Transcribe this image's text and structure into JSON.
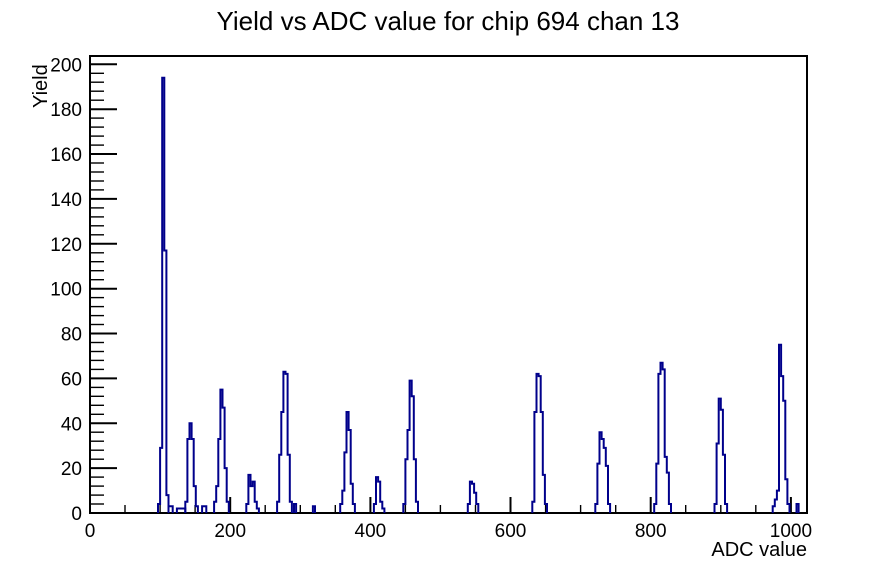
{
  "window": {
    "background_color": "#ffffff"
  },
  "chart_data": {
    "type": "bar",
    "style": "step-histogram",
    "title": "Yield vs ADC value for chip 694 chan 13",
    "xlabel": "ADC value",
    "ylabel": "Yield",
    "xlim": [
      0,
      1023
    ],
    "ylim": [
      0,
      203.7
    ],
    "grid": "off",
    "legend": "none",
    "axis_color": "#000000",
    "line_color": "#00008b",
    "x_major_step": 200,
    "x_minor_step": 50,
    "x_major_ticks": [
      0,
      200,
      400,
      600,
      800,
      1000
    ],
    "y_major_step": 20,
    "y_minor_step": 4,
    "y_major_ticks": [
      0,
      20,
      40,
      60,
      80,
      100,
      120,
      140,
      160,
      180,
      200
    ],
    "bin_width_adc": 3,
    "clusters": [
      {
        "start": 97,
        "values": [
          4,
          29,
          194,
          117,
          8
        ]
      },
      {
        "start": 112,
        "values": [
          3,
          3
        ]
      },
      {
        "start": 124,
        "values": [
          2,
          2,
          2,
          2
        ]
      },
      {
        "start": 136,
        "values": [
          5,
          33,
          40,
          33,
          12,
          3
        ]
      },
      {
        "start": 160,
        "values": [
          3,
          3
        ]
      },
      {
        "start": 177,
        "values": [
          5,
          12,
          33,
          55,
          47,
          20,
          5
        ]
      },
      {
        "start": 223,
        "values": [
          4,
          17,
          12,
          14,
          5,
          2
        ]
      },
      {
        "start": 267,
        "values": [
          5,
          26,
          45,
          63,
          62,
          26,
          5
        ]
      },
      {
        "start": 291,
        "values": [
          4
        ]
      },
      {
        "start": 318,
        "values": [
          3
        ]
      },
      {
        "start": 357,
        "values": [
          4,
          10,
          27,
          45,
          37,
          13,
          4
        ]
      },
      {
        "start": 405,
        "values": [
          4,
          16,
          14,
          5,
          2
        ]
      },
      {
        "start": 447,
        "values": [
          4,
          24,
          37,
          59,
          52,
          24,
          5
        ]
      },
      {
        "start": 539,
        "values": [
          4,
          14,
          13,
          9,
          4
        ]
      },
      {
        "start": 631,
        "values": [
          5,
          45,
          62,
          61,
          45,
          17,
          4
        ]
      },
      {
        "start": 721,
        "values": [
          4,
          22,
          36,
          33,
          29,
          21,
          4
        ]
      },
      {
        "start": 805,
        "values": [
          4,
          22,
          62,
          67,
          64,
          25,
          18,
          4
        ]
      },
      {
        "start": 891,
        "values": [
          4,
          31,
          51,
          46,
          26,
          4
        ]
      },
      {
        "start": 974,
        "values": [
          3,
          6,
          10,
          75,
          61,
          50,
          15,
          4
        ]
      },
      {
        "start": 1008,
        "values": [
          4
        ]
      }
    ],
    "peaks_summary": [
      {
        "adc": 103,
        "yield": 194
      },
      {
        "adc": 106,
        "yield": 117
      },
      {
        "adc": 141,
        "yield": 40
      },
      {
        "adc": 186,
        "yield": 55
      },
      {
        "adc": 227,
        "yield": 17
      },
      {
        "adc": 277,
        "yield": 63
      },
      {
        "adc": 366,
        "yield": 45
      },
      {
        "adc": 408,
        "yield": 16
      },
      {
        "adc": 457,
        "yield": 59
      },
      {
        "adc": 543,
        "yield": 14
      },
      {
        "adc": 638,
        "yield": 62
      },
      {
        "adc": 727,
        "yield": 36
      },
      {
        "adc": 815,
        "yield": 67
      },
      {
        "adc": 898,
        "yield": 51
      },
      {
        "adc": 984,
        "yield": 75
      }
    ]
  }
}
